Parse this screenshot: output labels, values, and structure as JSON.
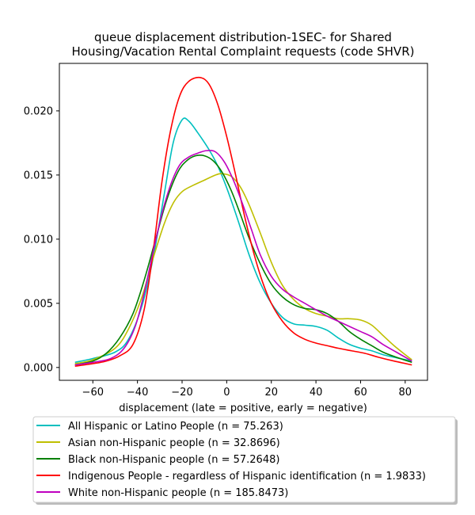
{
  "chart_data": {
    "type": "line",
    "title": [
      "queue displacement distribution-1SEC-  for Shared",
      "Housing/Vacation Rental Complaint  requests (code SHVR)"
    ],
    "xlabel": "displacement (late = positive, early = negative)",
    "ylabel": "",
    "xlim": [
      -75,
      90
    ],
    "ylim": [
      -0.001,
      0.0237
    ],
    "xticks": [
      -60,
      -40,
      -20,
      0,
      20,
      40,
      60,
      80
    ],
    "xtick_labels": [
      "−60",
      "−40",
      "−20",
      "0",
      "20",
      "40",
      "60",
      "80"
    ],
    "yticks": [
      0.0,
      0.005,
      0.01,
      0.015,
      0.02
    ],
    "ytick_labels": [
      "0.000",
      "0.005",
      "0.010",
      "0.015",
      "0.020"
    ],
    "grid": false,
    "legend_placement": "below-plot",
    "series": [
      {
        "name": "All Hispanic or Latino People (n = 75.263)",
        "color": "#00bfbf",
        "points": [
          [
            -68,
            0.0004
          ],
          [
            -60,
            0.0007
          ],
          [
            -50,
            0.0012
          ],
          [
            -44,
            0.0022
          ],
          [
            -38,
            0.0048
          ],
          [
            -33,
            0.0085
          ],
          [
            -28,
            0.0135
          ],
          [
            -24,
            0.0175
          ],
          [
            -20,
            0.0193
          ],
          [
            -17,
            0.0192
          ],
          [
            -13,
            0.0183
          ],
          [
            -8,
            0.017
          ],
          [
            -4,
            0.0157
          ],
          [
            0,
            0.014
          ],
          [
            5,
            0.0115
          ],
          [
            10,
            0.0088
          ],
          [
            15,
            0.0066
          ],
          [
            20,
            0.005
          ],
          [
            25,
            0.0039
          ],
          [
            30,
            0.0034
          ],
          [
            35,
            0.0033
          ],
          [
            40,
            0.0032
          ],
          [
            45,
            0.0029
          ],
          [
            50,
            0.0023
          ],
          [
            55,
            0.0018
          ],
          [
            60,
            0.0015
          ],
          [
            65,
            0.0013
          ],
          [
            70,
            0.001
          ],
          [
            75,
            0.0008
          ],
          [
            83,
            0.0005
          ]
        ]
      },
      {
        "name": "Asian non-Hispanic people (n = 32.8696)",
        "color": "#bfbf00",
        "points": [
          [
            -68,
            0.0003
          ],
          [
            -60,
            0.0006
          ],
          [
            -50,
            0.0015
          ],
          [
            -44,
            0.003
          ],
          [
            -38,
            0.0055
          ],
          [
            -33,
            0.0085
          ],
          [
            -28,
            0.0112
          ],
          [
            -24,
            0.0128
          ],
          [
            -20,
            0.0137
          ],
          [
            -15,
            0.0142
          ],
          [
            -10,
            0.0146
          ],
          [
            -5,
            0.015
          ],
          [
            -2,
            0.0151
          ],
          [
            2,
            0.0149
          ],
          [
            6,
            0.0141
          ],
          [
            10,
            0.0127
          ],
          [
            15,
            0.0105
          ],
          [
            20,
            0.0082
          ],
          [
            25,
            0.0064
          ],
          [
            30,
            0.0053
          ],
          [
            35,
            0.0046
          ],
          [
            40,
            0.0042
          ],
          [
            45,
            0.004
          ],
          [
            50,
            0.0038
          ],
          [
            55,
            0.0038
          ],
          [
            60,
            0.0037
          ],
          [
            65,
            0.0033
          ],
          [
            70,
            0.0025
          ],
          [
            75,
            0.0017
          ],
          [
            80,
            0.001
          ],
          [
            83,
            0.0006
          ]
        ]
      },
      {
        "name": "Black non-Hispanic people (n = 57.2648)",
        "color": "#008000",
        "points": [
          [
            -68,
            0.0002
          ],
          [
            -60,
            0.0005
          ],
          [
            -54,
            0.0011
          ],
          [
            -48,
            0.0023
          ],
          [
            -42,
            0.0042
          ],
          [
            -37,
            0.0068
          ],
          [
            -32,
            0.0099
          ],
          [
            -27,
            0.013
          ],
          [
            -22,
            0.0152
          ],
          [
            -18,
            0.0161
          ],
          [
            -14,
            0.0165
          ],
          [
            -10,
            0.0165
          ],
          [
            -6,
            0.0161
          ],
          [
            -2,
            0.0152
          ],
          [
            2,
            0.0138
          ],
          [
            6,
            0.012
          ],
          [
            10,
            0.0101
          ],
          [
            15,
            0.0081
          ],
          [
            20,
            0.0065
          ],
          [
            25,
            0.0055
          ],
          [
            30,
            0.0049
          ],
          [
            35,
            0.0046
          ],
          [
            40,
            0.0045
          ],
          [
            45,
            0.0042
          ],
          [
            50,
            0.0036
          ],
          [
            55,
            0.0028
          ],
          [
            60,
            0.0022
          ],
          [
            65,
            0.0017
          ],
          [
            70,
            0.0012
          ],
          [
            76,
            0.0008
          ],
          [
            83,
            0.0004
          ]
        ]
      },
      {
        "name": "Indigenous People - regardless of Hispanic identification (n = 1.9833)",
        "color": "#ff0000",
        "points": [
          [
            -68,
            0.0001
          ],
          [
            -60,
            0.0003
          ],
          [
            -54,
            0.0005
          ],
          [
            -48,
            0.0009
          ],
          [
            -42,
            0.0018
          ],
          [
            -37,
            0.0045
          ],
          [
            -33,
            0.009
          ],
          [
            -29,
            0.0145
          ],
          [
            -25,
            0.0186
          ],
          [
            -21,
            0.0212
          ],
          [
            -17,
            0.0223
          ],
          [
            -12,
            0.0226
          ],
          [
            -8,
            0.0221
          ],
          [
            -4,
            0.0205
          ],
          [
            0,
            0.018
          ],
          [
            4,
            0.015
          ],
          [
            8,
            0.0118
          ],
          [
            12,
            0.009
          ],
          [
            16,
            0.0067
          ],
          [
            20,
            0.005
          ],
          [
            25,
            0.0036
          ],
          [
            30,
            0.0027
          ],
          [
            35,
            0.0022
          ],
          [
            40,
            0.0019
          ],
          [
            45,
            0.0017
          ],
          [
            50,
            0.0015
          ],
          [
            56,
            0.0013
          ],
          [
            62,
            0.0011
          ],
          [
            68,
            0.0008
          ],
          [
            75,
            0.0005
          ],
          [
            83,
            0.0002
          ]
        ]
      },
      {
        "name": "White non-Hispanic people (n = 185.8473)",
        "color": "#bf00bf",
        "points": [
          [
            -68,
            0.0002
          ],
          [
            -60,
            0.0004
          ],
          [
            -52,
            0.0007
          ],
          [
            -46,
            0.0015
          ],
          [
            -41,
            0.0032
          ],
          [
            -37,
            0.0058
          ],
          [
            -33,
            0.009
          ],
          [
            -29,
            0.012
          ],
          [
            -25,
            0.0143
          ],
          [
            -21,
            0.0158
          ],
          [
            -17,
            0.0164
          ],
          [
            -13,
            0.0167
          ],
          [
            -9,
            0.0169
          ],
          [
            -5,
            0.0168
          ],
          [
            -1,
            0.016
          ],
          [
            3,
            0.0146
          ],
          [
            7,
            0.0128
          ],
          [
            11,
            0.0108
          ],
          [
            15,
            0.0088
          ],
          [
            20,
            0.0071
          ],
          [
            25,
            0.0061
          ],
          [
            30,
            0.0055
          ],
          [
            35,
            0.005
          ],
          [
            40,
            0.0045
          ],
          [
            45,
            0.004
          ],
          [
            50,
            0.0036
          ],
          [
            55,
            0.0032
          ],
          [
            60,
            0.0028
          ],
          [
            65,
            0.0024
          ],
          [
            70,
            0.0018
          ],
          [
            76,
            0.0012
          ],
          [
            83,
            0.0005
          ]
        ]
      }
    ]
  }
}
